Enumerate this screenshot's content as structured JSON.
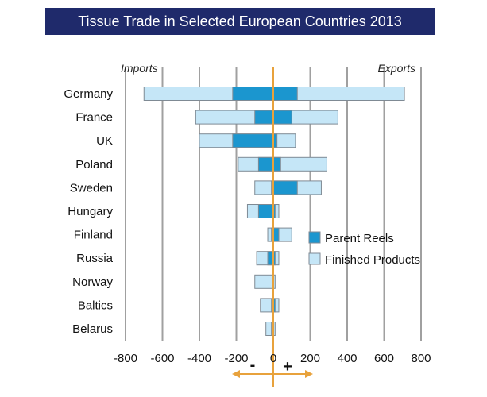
{
  "chart_data": {
    "type": "bar",
    "title": "Tissue Trade in Selected European Countries 2013",
    "left_label": "Imports",
    "right_label": "Exports",
    "categories": [
      "Germany",
      "France",
      "UK",
      "Poland",
      "Sweden",
      "Hungary",
      "Finland",
      "Russia",
      "Norway",
      "Baltics",
      "Belarus"
    ],
    "series": [
      {
        "name": "Parent Reels",
        "color": "#1b96cf",
        "imports": [
          -220,
          -100,
          -220,
          -80,
          -10,
          -80,
          -10,
          -30,
          0,
          -10,
          -10
        ],
        "exports": [
          130,
          100,
          20,
          40,
          130,
          10,
          30,
          10,
          0,
          10,
          0
        ]
      },
      {
        "name": "Finished Products",
        "color": "#c5e6f7",
        "imports": [
          -700,
          -420,
          -400,
          -190,
          -100,
          -140,
          -30,
          -90,
          -100,
          -70,
          -40
        ],
        "exports": [
          710,
          350,
          120,
          290,
          260,
          30,
          100,
          30,
          10,
          30,
          10
        ]
      }
    ],
    "xticks": [
      "-800",
      "-600",
      "-400",
      "-200",
      "0",
      "200",
      "400",
      "600",
      "800"
    ],
    "xlim": [
      -800,
      800
    ],
    "grid": "vertical",
    "legend_position": "bottom-right",
    "axis_colors": {
      "zero_line": "#e8a23c",
      "grid": "#a0a0a0",
      "bar_edge": "#7f8a94"
    },
    "sign_labels": {
      "negative": "-",
      "positive": "+"
    }
  }
}
